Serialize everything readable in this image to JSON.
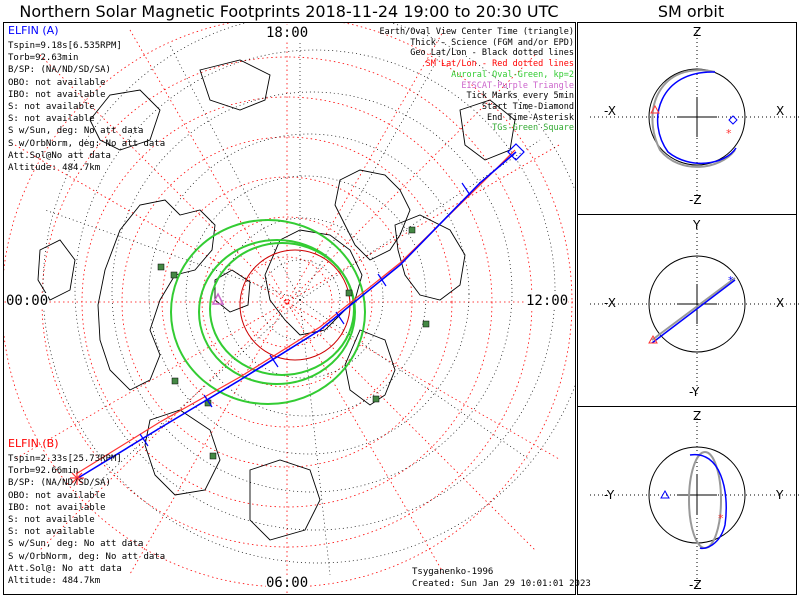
{
  "title": "Northern Solar Magnetic Footprints 2018-11-24 19:00 to 20:30 UTC",
  "orbit_title": "SM orbit",
  "mlt_labels": {
    "top": "18:00",
    "left": "00:00",
    "right": "12:00",
    "bottom": "06:00"
  },
  "legend": [
    {
      "text": "Earth/Oval View Center Time (triangle)",
      "color": "#000000"
    },
    {
      "text": "Thick - Science (FGM and/or EPD)",
      "color": "#000000"
    },
    {
      "text": "Geo Lat/Lon - Black dotted lines",
      "color": "#000000"
    },
    {
      "text": "SM Lat/Lon - Red dotted lines",
      "color": "#ff0000"
    },
    {
      "text": "Auroral Oval-Green, kp=2",
      "color": "#33cc33"
    },
    {
      "text": "EISCAT-Purple Triangle",
      "color": "#cc66cc"
    },
    {
      "text": "Tick Marks every 5min",
      "color": "#000000"
    },
    {
      "text": "Start Time-Diamond",
      "color": "#000000"
    },
    {
      "text": "End Time-Asterisk",
      "color": "#000000"
    },
    {
      "text": "TGs-Green Square",
      "color": "#33aa33"
    }
  ],
  "elfin_a": {
    "name": "ELFIN (A)",
    "lines": [
      "Tspin=9.18s[6.535RPM]",
      "Torb=92.63min",
      "B/SP: (NA/ND/SD/SA)",
      "OBO: not available",
      "IBO: not available",
      "S: not available",
      "S: not available",
      "S w/Sun, deg: No att data",
      "S w/OrbNorm, deg: No att data",
      "Att.Sol@No att data",
      "Altitude: 484.7km"
    ]
  },
  "elfin_b": {
    "name": "ELFIN (B)",
    "lines": [
      "Tspin=2.33s[25.73RPM]",
      "Torb=92.66min",
      "B/SP: (NA/ND/SD/SA)",
      "OBO: not available",
      "IBO: not available",
      "S: not available",
      "S: not available",
      "S w/Sun, deg: No att data",
      "S w/OrbNorm, deg: No att data",
      "Att.Sol@: No att data",
      "Altitude: 484.7km"
    ]
  },
  "credit": "Tsyganenko-1996",
  "created": "Created: Sun Jan 29 10:01:01 2023",
  "orbit_panels": [
    {
      "up": "Z",
      "down": "-Z",
      "left": "-X",
      "right": "X"
    },
    {
      "up": "Y",
      "down": "-Y",
      "left": "-X",
      "right": "X"
    },
    {
      "up": "Z",
      "down": "-Z",
      "left": "-Y",
      "right": "Y"
    }
  ],
  "colors": {
    "elfin_a": "#0000ff",
    "elfin_b": "#ff3333",
    "oval": "#33cc33",
    "sm_grid": "#ff0000",
    "geo_grid": "#000000",
    "eiscat": "#cc66cc",
    "tgs": "#448844"
  },
  "icons": [
    "start-diamond-icon",
    "end-asterisk-icon",
    "center-triangle-icon",
    "tgs-square-icon"
  ]
}
